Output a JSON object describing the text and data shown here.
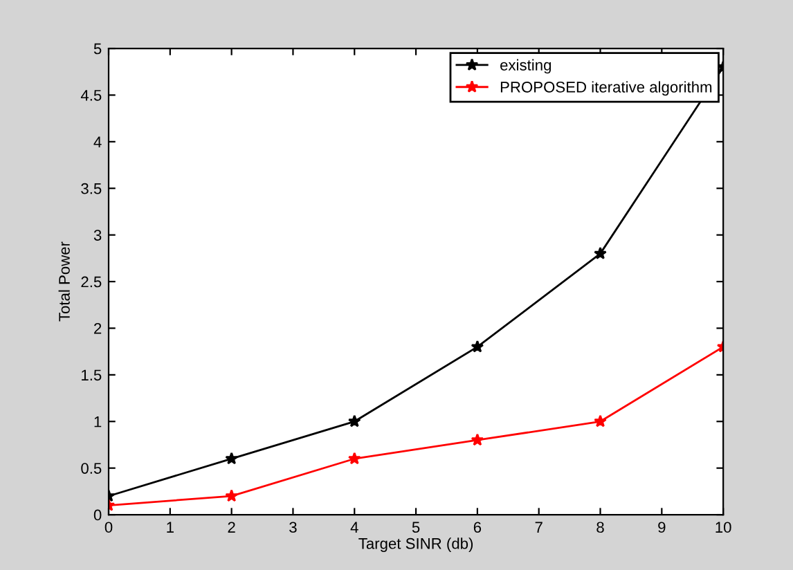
{
  "chart_data": {
    "type": "line",
    "xlabel": "Target SINR (db)",
    "ylabel": "Total Power",
    "x": [
      0,
      2,
      4,
      6,
      8,
      10
    ],
    "series": [
      {
        "name": "existing",
        "color": "#000000",
        "values": [
          0.2,
          0.6,
          1.0,
          1.8,
          2.8,
          4.8
        ]
      },
      {
        "name": "PROPOSED iterative algorithm",
        "color": "#ff0000",
        "values": [
          0.1,
          0.2,
          0.6,
          0.8,
          1.0,
          1.8
        ]
      }
    ],
    "xlim": [
      0,
      10
    ],
    "xticks": [
      0,
      1,
      2,
      3,
      4,
      5,
      6,
      7,
      8,
      9,
      10
    ],
    "ylim": [
      0,
      5
    ],
    "yticks": [
      0,
      0.5,
      1,
      1.5,
      2,
      2.5,
      3,
      3.5,
      4,
      4.5,
      5
    ],
    "grid": false,
    "legend": "top right",
    "marker": "star",
    "line_style": "solid"
  }
}
